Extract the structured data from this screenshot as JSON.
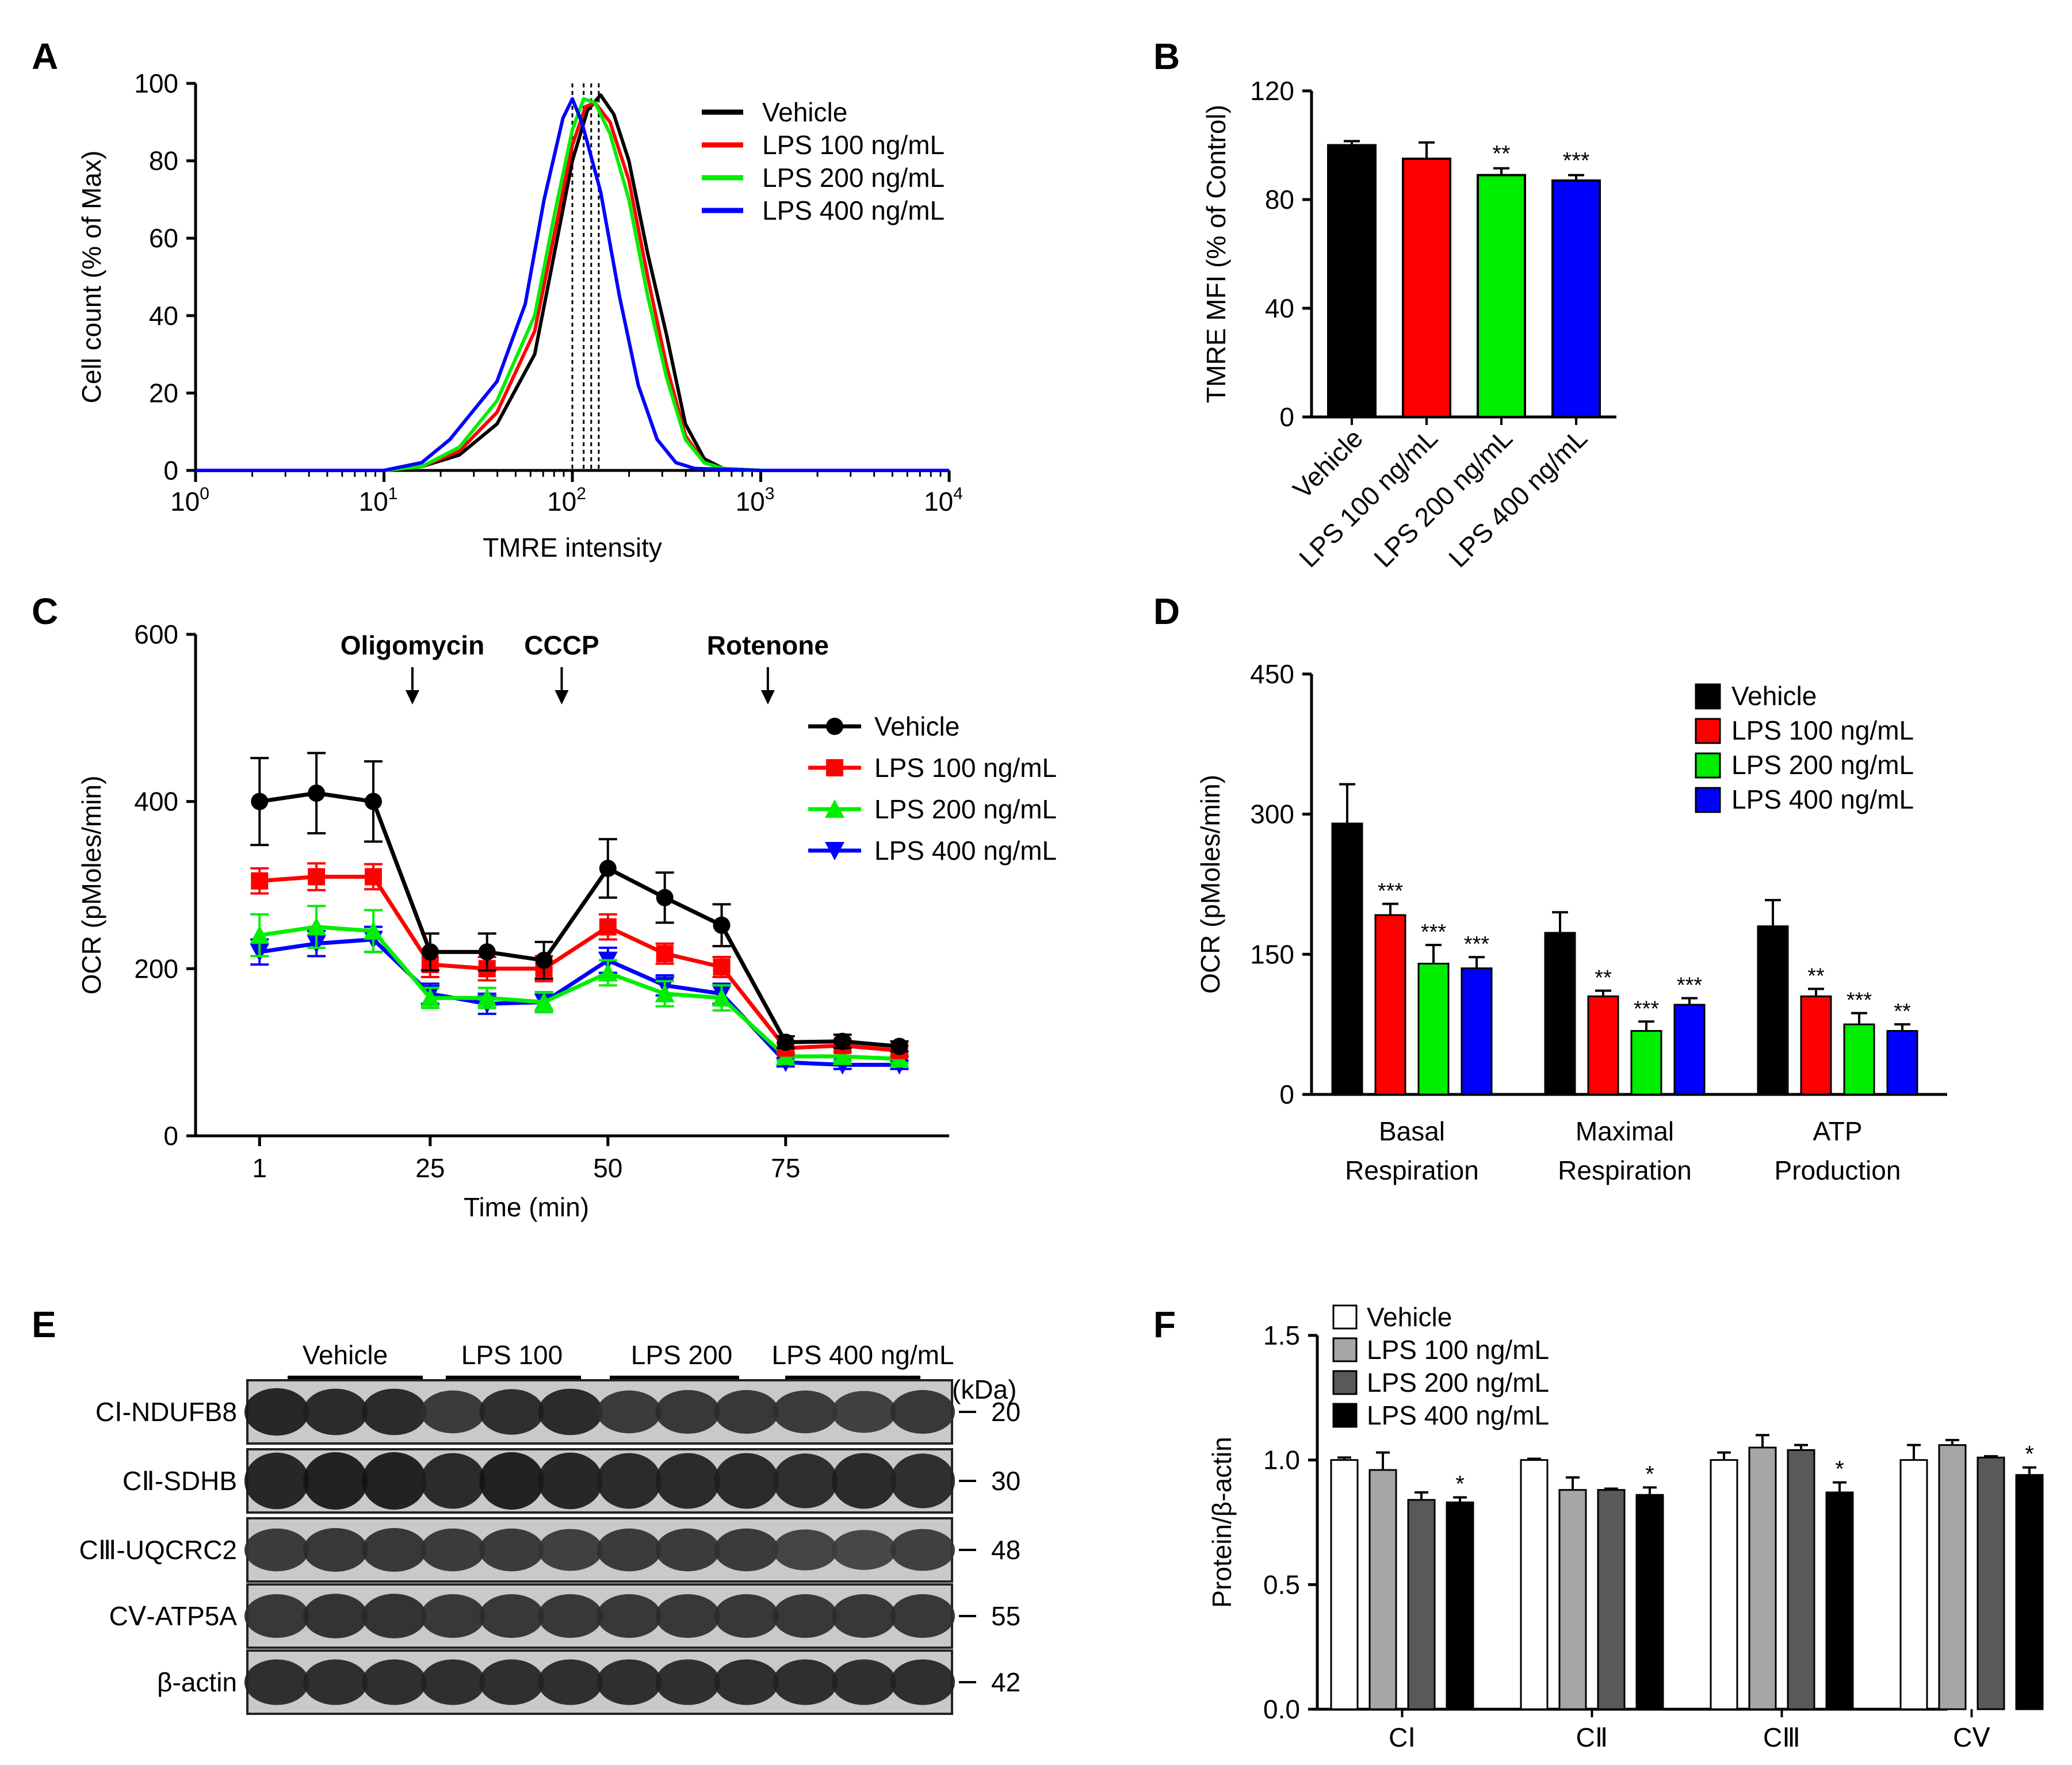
{
  "panels": {
    "A": "A",
    "B": "B",
    "C": "C",
    "D": "D",
    "E": "E",
    "F": "F"
  },
  "colors": {
    "Vehicle": "#000000",
    "LPS 100 ng/mL": "#ff0000",
    "LPS 200 ng/mL": "#00ee00",
    "LPS 400 ng/mL": "#0000ff",
    "F_Vehicle": "#ffffff",
    "F_LPS100": "#a6a6a6",
    "F_LPS200": "#595959",
    "F_LPS400": "#000000"
  },
  "chart_data": [
    {
      "panel": "A",
      "type": "line",
      "xlabel": "TMRE intensity",
      "ylabel": "Cell count (% of Max)",
      "xscale": "log",
      "xlim_log10": [
        0,
        4
      ],
      "ylim": [
        0,
        100
      ],
      "xticks": [
        {
          "base": "10",
          "exp": "0"
        },
        {
          "base": "10",
          "exp": "1"
        },
        {
          "base": "10",
          "exp": "2"
        },
        {
          "base": "10",
          "exp": "3"
        },
        {
          "base": "10",
          "exp": "4"
        }
      ],
      "yticks": [
        "0",
        "20",
        "40",
        "60",
        "80",
        "100"
      ],
      "legend": [
        "Vehicle",
        "LPS 100 ng/mL",
        "LPS 200 ng/mL",
        "LPS 400 ng/mL"
      ],
      "median_log10": [
        2.14,
        2.1,
        2.06,
        2.0
      ],
      "series": [
        {
          "name": "Vehicle",
          "points": [
            [
              0,
              0
            ],
            [
              1,
              0
            ],
            [
              1.2,
              1
            ],
            [
              1.4,
              4
            ],
            [
              1.6,
              12
            ],
            [
              1.8,
              30
            ],
            [
              1.9,
              55
            ],
            [
              2.0,
              80
            ],
            [
              2.08,
              93
            ],
            [
              2.15,
              97
            ],
            [
              2.22,
              92
            ],
            [
              2.3,
              80
            ],
            [
              2.4,
              56
            ],
            [
              2.5,
              35
            ],
            [
              2.6,
              12
            ],
            [
              2.7,
              3
            ],
            [
              2.8,
              0.5
            ],
            [
              3,
              0
            ],
            [
              4,
              0
            ]
          ]
        },
        {
          "name": "LPS 100 ng/mL",
          "points": [
            [
              0,
              0
            ],
            [
              1,
              0
            ],
            [
              1.2,
              1
            ],
            [
              1.4,
              5
            ],
            [
              1.6,
              15
            ],
            [
              1.8,
              36
            ],
            [
              1.9,
              60
            ],
            [
              2.0,
              84
            ],
            [
              2.07,
              94
            ],
            [
              2.12,
              95
            ],
            [
              2.2,
              90
            ],
            [
              2.3,
              75
            ],
            [
              2.4,
              50
            ],
            [
              2.5,
              27
            ],
            [
              2.6,
              9
            ],
            [
              2.7,
              2
            ],
            [
              2.8,
              0.5
            ],
            [
              3,
              0
            ],
            [
              4,
              0
            ]
          ]
        },
        {
          "name": "LPS 200 ng/mL",
          "points": [
            [
              0,
              0
            ],
            [
              1,
              0
            ],
            [
              1.2,
              1
            ],
            [
              1.4,
              6
            ],
            [
              1.6,
              18
            ],
            [
              1.8,
              40
            ],
            [
              1.9,
              65
            ],
            [
              2.0,
              88
            ],
            [
              2.06,
              96
            ],
            [
              2.12,
              95
            ],
            [
              2.2,
              87
            ],
            [
              2.3,
              70
            ],
            [
              2.4,
              45
            ],
            [
              2.5,
              24
            ],
            [
              2.6,
              8
            ],
            [
              2.7,
              2
            ],
            [
              2.8,
              0.5
            ],
            [
              3,
              0
            ],
            [
              4,
              0
            ]
          ]
        },
        {
          "name": "LPS 400 ng/mL",
          "points": [
            [
              0,
              0
            ],
            [
              1,
              0
            ],
            [
              1.2,
              2
            ],
            [
              1.35,
              8
            ],
            [
              1.5,
              17
            ],
            [
              1.6,
              23
            ],
            [
              1.75,
              43
            ],
            [
              1.85,
              70
            ],
            [
              1.95,
              91
            ],
            [
              2.0,
              96
            ],
            [
              2.05,
              90
            ],
            [
              2.15,
              72
            ],
            [
              2.25,
              45
            ],
            [
              2.35,
              22
            ],
            [
              2.45,
              8
            ],
            [
              2.55,
              2
            ],
            [
              2.65,
              0.5
            ],
            [
              3,
              0
            ],
            [
              4,
              0
            ]
          ]
        }
      ]
    },
    {
      "panel": "B",
      "type": "bar",
      "ylabel": "TMRE MFI (% of Control)",
      "ylim": [
        0,
        120
      ],
      "yticks": [
        "0",
        "40",
        "80",
        "120"
      ],
      "categories": [
        "Vehicle",
        "LPS 100 ng/mL",
        "LPS 200 ng/mL",
        "LPS 400 ng/mL"
      ],
      "values": [
        100,
        95,
        89,
        87
      ],
      "errors": [
        1.5,
        6,
        2.5,
        2
      ],
      "significance": [
        "",
        "",
        "**",
        "***"
      ]
    },
    {
      "panel": "C",
      "type": "line",
      "xlabel": "Time (min)",
      "ylabel": "OCR (pMoles/min)",
      "xlim": [
        -8,
        98
      ],
      "ylim": [
        0,
        600
      ],
      "xticks": [
        "1",
        "25",
        "50",
        "75"
      ],
      "yticks": [
        "0",
        "200",
        "400",
        "600"
      ],
      "annotations": [
        {
          "label": "Oligomycin",
          "x": 22.5
        },
        {
          "label": "CCCP",
          "x": 43.5
        },
        {
          "label": "Rotenone",
          "x": 72.5
        }
      ],
      "legend": [
        "Vehicle",
        "LPS 100 ng/mL",
        "LPS 200 ng/mL",
        "LPS 400 ng/mL"
      ],
      "x": [
        1,
        9,
        17,
        25,
        33,
        41,
        50,
        58,
        66,
        75,
        83,
        91
      ],
      "series": [
        {
          "name": "Vehicle",
          "marker": "circle",
          "values": [
            400,
            410,
            400,
            220,
            220,
            210,
            320,
            285,
            252,
            112,
            113,
            107
          ],
          "errors": [
            52,
            48,
            48,
            22,
            22,
            22,
            35,
            30,
            25,
            7,
            8,
            6
          ]
        },
        {
          "name": "LPS 100 ng/mL",
          "marker": "square",
          "values": [
            305,
            310,
            310,
            205,
            200,
            200,
            250,
            218,
            202,
            105,
            108,
            102
          ],
          "errors": [
            15,
            16,
            15,
            15,
            14,
            15,
            15,
            12,
            12,
            6,
            7,
            6
          ]
        },
        {
          "name": "LPS 200 ng/mL",
          "marker": "triangle-up",
          "values": [
            240,
            250,
            245,
            165,
            165,
            160,
            195,
            170,
            165,
            95,
            95,
            92
          ],
          "errors": [
            25,
            25,
            25,
            12,
            12,
            12,
            15,
            15,
            15,
            5,
            5,
            5
          ]
        },
        {
          "name": "LPS 400 ng/mL",
          "marker": "triangle-down",
          "values": [
            220,
            230,
            235,
            170,
            158,
            160,
            210,
            180,
            170,
            88,
            85,
            85
          ],
          "errors": [
            15,
            15,
            15,
            12,
            12,
            12,
            15,
            12,
            12,
            5,
            5,
            5
          ]
        }
      ]
    },
    {
      "panel": "D",
      "type": "bar",
      "ylabel": "OCR (pMoles/min)",
      "ylim": [
        0,
        450
      ],
      "yticks": [
        "0",
        "150",
        "300",
        "450"
      ],
      "categories": [
        [
          "Basal",
          "Respiration"
        ],
        [
          "Maximal",
          "Respiration"
        ],
        [
          "ATP",
          "Production"
        ]
      ],
      "legend": [
        "Vehicle",
        "LPS 100 ng/mL",
        "LPS 200 ng/mL",
        "LPS 400 ng/mL"
      ],
      "series": [
        {
          "name": "Vehicle",
          "values": [
            290,
            173,
            180
          ],
          "errors": [
            42,
            22,
            28
          ],
          "sig": [
            "",
            "",
            ""
          ]
        },
        {
          "name": "LPS 100 ng/mL",
          "values": [
            192,
            105,
            105
          ],
          "errors": [
            12,
            6,
            8
          ],
          "sig": [
            "***",
            "**",
            "**"
          ]
        },
        {
          "name": "LPS 200 ng/mL",
          "values": [
            140,
            68,
            75
          ],
          "errors": [
            20,
            10,
            12
          ],
          "sig": [
            "***",
            "***",
            "***"
          ]
        },
        {
          "name": "LPS 400 ng/mL",
          "values": [
            135,
            96,
            68
          ],
          "errors": [
            12,
            7,
            7
          ],
          "sig": [
            "***",
            "***",
            "**"
          ]
        }
      ]
    },
    {
      "panel": "F",
      "type": "bar",
      "ylabel": "Protein/β-actin",
      "ylim": [
        0,
        1.5
      ],
      "yticks": [
        "0.0",
        "0.5",
        "1.0",
        "1.5"
      ],
      "categories": [
        "CⅠ",
        "CⅡ",
        "CⅢ",
        "CⅤ"
      ],
      "legend": [
        "Vehicle",
        "LPS 100 ng/mL",
        "LPS 200 ng/mL",
        "LPS 400 ng/mL"
      ],
      "series": [
        {
          "name": "Vehicle",
          "values": [
            1.0,
            1.0,
            1.0,
            1.0
          ],
          "errors": [
            0.01,
            0.005,
            0.03,
            0.06
          ],
          "sig": [
            "",
            "",
            "",
            ""
          ]
        },
        {
          "name": "LPS 100 ng/mL",
          "values": [
            0.96,
            0.88,
            1.05,
            1.06
          ],
          "errors": [
            0.07,
            0.05,
            0.05,
            0.02
          ],
          "sig": [
            "",
            "",
            "",
            ""
          ]
        },
        {
          "name": "LPS 200 ng/mL",
          "values": [
            0.84,
            0.88,
            1.04,
            1.01
          ],
          "errors": [
            0.03,
            0.005,
            0.02,
            0.005
          ],
          "sig": [
            "",
            "",
            "",
            ""
          ]
        },
        {
          "name": "LPS 400 ng/mL",
          "values": [
            0.83,
            0.86,
            0.87,
            0.94
          ],
          "errors": [
            0.02,
            0.03,
            0.04,
            0.03
          ],
          "sig": [
            "*",
            "*",
            "*",
            "*"
          ]
        }
      ]
    }
  ],
  "blot": {
    "groups": [
      "Vehicle",
      "LPS 100",
      "LPS 200",
      "LPS 400 ng/mL"
    ],
    "kda_label": "(kDa)",
    "rows": [
      {
        "label": "CⅠ-NDUFB8",
        "kda": "20",
        "intensity": [
          0.95,
          0.9,
          0.9,
          0.7,
          0.85,
          0.9,
          0.7,
          0.75,
          0.75,
          0.7,
          0.65,
          0.75
        ]
      },
      {
        "label": "CⅡ-SDHB",
        "kda": "30",
        "intensity": [
          0.95,
          1.0,
          1.0,
          0.9,
          1.0,
          0.95,
          0.9,
          0.9,
          0.9,
          0.85,
          0.9,
          0.85
        ]
      },
      {
        "label": "CⅢ-UQCRC2",
        "kda": "48",
        "intensity": [
          0.7,
          0.75,
          0.75,
          0.7,
          0.7,
          0.65,
          0.7,
          0.7,
          0.7,
          0.6,
          0.55,
          0.65
        ]
      },
      {
        "label": "CⅤ-ATP5A",
        "kda": "55",
        "intensity": [
          0.75,
          0.8,
          0.8,
          0.75,
          0.75,
          0.75,
          0.75,
          0.75,
          0.75,
          0.75,
          0.75,
          0.75
        ]
      },
      {
        "label": "β-actin",
        "kda": "42",
        "intensity": [
          0.85,
          0.85,
          0.85,
          0.85,
          0.85,
          0.85,
          0.85,
          0.85,
          0.85,
          0.85,
          0.85,
          0.85
        ]
      }
    ]
  }
}
